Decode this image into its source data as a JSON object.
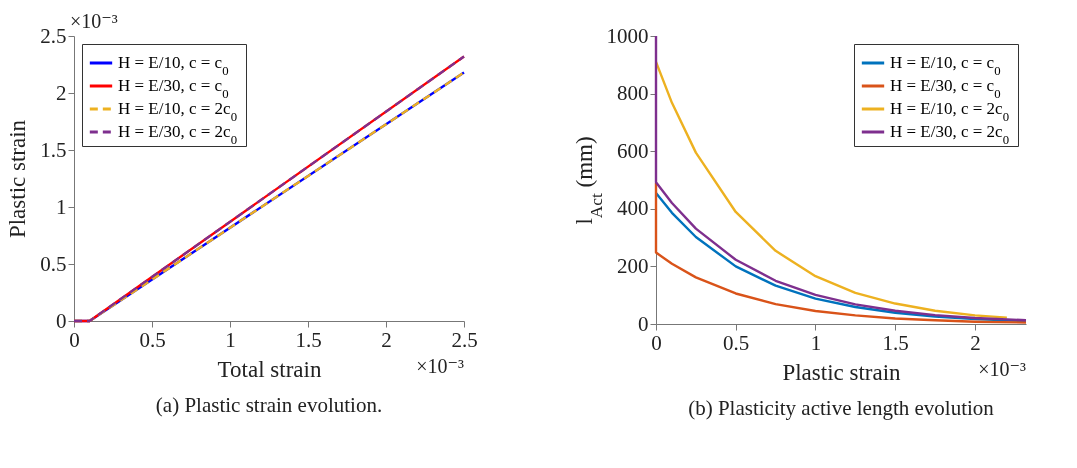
{
  "chart_data": [
    {
      "type": "line",
      "title": "(a) Plastic strain evolution.",
      "xlabel": "Total strain",
      "ylabel": "Plastic strain",
      "xlim": [
        0,
        2.5
      ],
      "ylim": [
        0,
        2.5
      ],
      "xticks": [
        0,
        0.5,
        1,
        1.5,
        2,
        2.5
      ],
      "yticks": [
        0,
        0.5,
        1,
        1.5,
        2,
        2.5
      ],
      "grid": false,
      "legend": "top left",
      "annotations": [
        "×10⁻³",
        "×10⁻³"
      ],
      "series": [
        {
          "name": "H = E/10, c = c$_{0}$",
          "color": "#0000ff",
          "line_style": "solid",
          "x": [
            0,
            0.1,
            2.5
          ],
          "values": [
            0,
            0,
            2.18
          ]
        },
        {
          "name": "H = E/30, c = c$_{0}$",
          "color": "#ff0000",
          "line_style": "solid",
          "x": [
            0,
            0.1,
            2.5
          ],
          "values": [
            0,
            0,
            2.32
          ]
        },
        {
          "name": "H = E/10, c = 2c$_{0}$",
          "color": "#edb120",
          "line_style": "dashed",
          "x": [
            0,
            0.1,
            2.5
          ],
          "values": [
            0,
            0,
            2.18
          ]
        },
        {
          "name": "H = E/30, c = 2c$_{0}$",
          "color": "#7e2f8e",
          "line_style": "dashed",
          "x": [
            0,
            0.1,
            2.5
          ],
          "values": [
            0,
            0,
            2.32
          ]
        }
      ]
    },
    {
      "type": "line",
      "title": "(b) Plasticity active length evolution",
      "xlabel": "Plastic strain",
      "ylabel": "l$_{Act}$ (mm)",
      "xlim": [
        0,
        2.32
      ],
      "ylim": [
        0,
        1000
      ],
      "xticks": [
        0,
        0.5,
        1,
        1.5,
        2
      ],
      "yticks": [
        0,
        200,
        400,
        600,
        800,
        1000
      ],
      "grid": false,
      "legend": "top right",
      "annotations": [
        "×10⁻³"
      ],
      "series": [
        {
          "name": "H = E/10, c = c$_{0}$",
          "color": "#0072bd",
          "x": [
            0,
            0.1,
            0.25,
            0.5,
            0.75,
            1,
            1.25,
            1.5,
            1.75,
            2,
            2.32
          ],
          "values": [
            455,
            386,
            302,
            200,
            133,
            88,
            59,
            39,
            26,
            17,
            10
          ]
        },
        {
          "name": "H = E/30, c = c$_{0}$",
          "color": "#d95319",
          "x": [
            0,
            0,
            0.1,
            0.25,
            0.5,
            0.75,
            1,
            1.25,
            1.5,
            1.75,
            2,
            2.32
          ],
          "values": [
            490,
            248,
            209,
            162,
            106,
            69,
            45,
            30,
            19,
            13,
            8,
            5
          ]
        },
        {
          "name": "H = E/10, c = 2c$_{0}$",
          "color": "#edb120",
          "x": [
            0,
            0.1,
            0.25,
            0.5,
            0.75,
            1,
            1.25,
            1.5,
            1.75,
            2,
            2.2
          ],
          "values": [
            910,
            768,
            595,
            389,
            254,
            166,
            108,
            71,
            46,
            30,
            22
          ]
        },
        {
          "name": "H = E/30, c = 2c$_{0}$",
          "color": "#7e2f8e",
          "x": [
            0,
            0,
            0.1,
            0.25,
            0.5,
            0.75,
            1,
            1.25,
            1.5,
            1.75,
            2,
            2.32
          ],
          "values": [
            1000,
            492,
            420,
            331,
            223,
            150,
            101,
            68,
            46,
            31,
            21,
            13
          ]
        }
      ]
    }
  ]
}
